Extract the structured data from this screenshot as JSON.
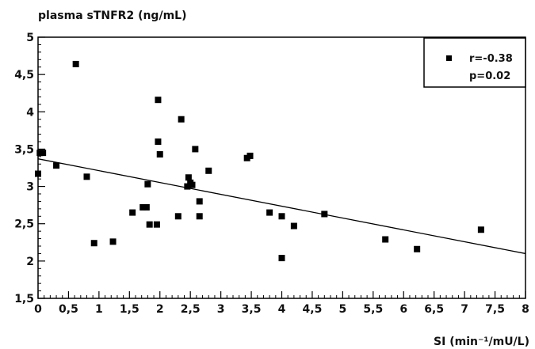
{
  "chart_data": {
    "type": "scatter",
    "title": "",
    "ylabel": "plasma sTNFR2 (ng/mL)",
    "xlabel": "SI (min⁻¹/mU/L)",
    "xlim": [
      0,
      8
    ],
    "ylim": [
      1.5,
      5
    ],
    "x_ticks": [
      0,
      0.5,
      1,
      1.5,
      2,
      2.5,
      3,
      3.5,
      4,
      4.5,
      5,
      5.5,
      6,
      6.5,
      7,
      7.5,
      8
    ],
    "x_tick_labels": [
      "0",
      "0,5",
      "1",
      "1,5",
      "2",
      "2,5",
      "3",
      "3,5",
      "4",
      "4,5",
      "5",
      "5,5",
      "6",
      "6,5",
      "7",
      "7,5",
      "8"
    ],
    "y_ticks": [
      1.5,
      2,
      2.5,
      3,
      3.5,
      4,
      4.5,
      5
    ],
    "y_tick_labels": [
      "1,5",
      "2",
      "2,5",
      "3",
      "3,5",
      "4",
      "4,5",
      "5"
    ],
    "grid": false,
    "legend_position": "top-right",
    "legend": {
      "r_text": "r=-0.38",
      "p_text": "p=0.02"
    },
    "marker_color": "#000000",
    "series": [
      {
        "points": [
          {
            "x": 0.0,
            "y": 3.17
          },
          {
            "x": 0.03,
            "y": 3.45
          },
          {
            "x": 0.08,
            "y": 3.45
          },
          {
            "x": 0.3,
            "y": 3.28
          },
          {
            "x": 0.62,
            "y": 4.64
          },
          {
            "x": 0.8,
            "y": 3.13
          },
          {
            "x": 0.92,
            "y": 2.24
          },
          {
            "x": 1.23,
            "y": 2.26
          },
          {
            "x": 1.55,
            "y": 2.65
          },
          {
            "x": 1.72,
            "y": 2.72
          },
          {
            "x": 1.78,
            "y": 2.72
          },
          {
            "x": 1.8,
            "y": 3.03
          },
          {
            "x": 1.83,
            "y": 2.49
          },
          {
            "x": 1.95,
            "y": 2.49
          },
          {
            "x": 1.97,
            "y": 4.16
          },
          {
            "x": 1.97,
            "y": 3.6
          },
          {
            "x": 2.0,
            "y": 3.43
          },
          {
            "x": 2.3,
            "y": 2.6
          },
          {
            "x": 2.35,
            "y": 3.9
          },
          {
            "x": 2.45,
            "y": 3.0
          },
          {
            "x": 2.47,
            "y": 3.12
          },
          {
            "x": 2.5,
            "y": 3.05
          },
          {
            "x": 2.53,
            "y": 3.02
          },
          {
            "x": 2.58,
            "y": 3.5
          },
          {
            "x": 2.65,
            "y": 2.8
          },
          {
            "x": 2.65,
            "y": 2.6
          },
          {
            "x": 2.8,
            "y": 3.21
          },
          {
            "x": 3.43,
            "y": 3.38
          },
          {
            "x": 3.48,
            "y": 3.41
          },
          {
            "x": 3.8,
            "y": 2.65
          },
          {
            "x": 4.0,
            "y": 2.6
          },
          {
            "x": 4.0,
            "y": 2.04
          },
          {
            "x": 4.2,
            "y": 2.47
          },
          {
            "x": 4.7,
            "y": 2.63
          },
          {
            "x": 5.7,
            "y": 2.29
          },
          {
            "x": 6.22,
            "y": 2.16
          },
          {
            "x": 7.27,
            "y": 2.42
          }
        ]
      }
    ],
    "regression_line": {
      "x": [
        0,
        8
      ],
      "y": [
        3.37,
        2.1
      ]
    }
  }
}
